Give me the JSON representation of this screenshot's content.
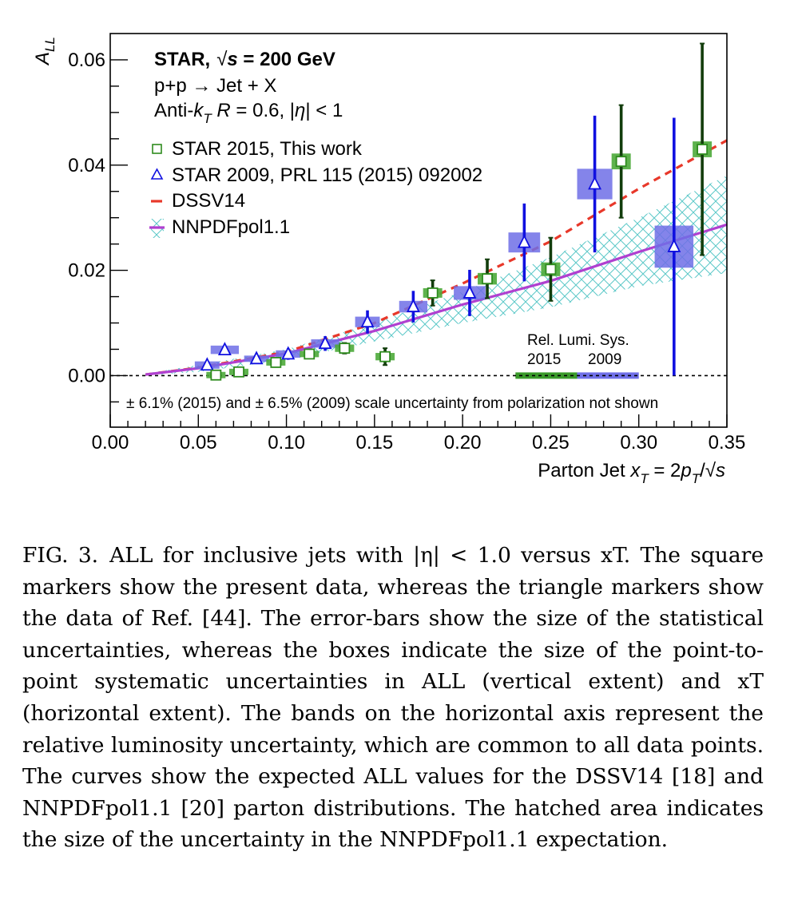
{
  "chart_data": {
    "type": "scatter",
    "ylabel": "A",
    "ylabel_sub": "LL",
    "xlabel_parts": [
      "Parton Jet ",
      "x",
      "T",
      " = 2",
      "p",
      "T",
      "/√",
      "s"
    ],
    "xlim": [
      0.0,
      0.35
    ],
    "ylim": [
      -0.0098,
      0.065
    ],
    "x_ticks": [
      "0.00",
      "0.05",
      "0.10",
      "0.15",
      "0.20",
      "0.25",
      "0.30",
      "0.35"
    ],
    "x_tick_values": [
      0.0,
      0.05,
      0.1,
      0.15,
      0.2,
      0.25,
      0.3,
      0.35
    ],
    "y_ticks": [
      "0.00",
      "0.02",
      "0.04",
      "0.06"
    ],
    "y_tick_values": [
      0.0,
      0.02,
      0.04,
      0.06
    ],
    "header": {
      "line1_a": "STAR,",
      "line1_b": "√",
      "line1_c": "s",
      "line1_d": " = 200 GeV",
      "line2": "p+p → Jet + X",
      "line3_a": "Anti-",
      "line3_b": "k",
      "line3_c": "T",
      "line3_d": " R",
      "line3_e": " = 0.6, |",
      "line3_f": "η",
      "line3_g": "| < 1"
    },
    "legend": [
      {
        "label": "STAR 2015, This work",
        "marker": "open-square",
        "color": "#2e8b1e"
      },
      {
        "label": "STAR 2009, PRL 115 (2015) 092002",
        "marker": "open-triangle",
        "color": "#1010e0"
      },
      {
        "label": "DSSV14",
        "marker": "dashed-line",
        "color": "#e8382a"
      },
      {
        "label": "NNPDFpol1.1",
        "marker": "hatched-line",
        "color": "#b040d0"
      }
    ],
    "lumi_label": "Rel. Lumi. Sys.",
    "lumi_years": [
      "2015",
      "2009"
    ],
    "lumi_bands": [
      {
        "year": "2015",
        "x0": 0.23,
        "x1": 0.265,
        "color": "#3a9a2a"
      },
      {
        "year": "2009",
        "x0": 0.265,
        "x1": 0.3,
        "color": "#7070e8"
      }
    ],
    "note": "± 6.1% (2015) and ± 6.5% (2009) scale uncertainty from polarization not shown",
    "series": [
      {
        "name": "STAR 2015, This work",
        "marker": "square",
        "points": [
          {
            "x": 0.06,
            "y": 0.0001,
            "stat": 0.0006,
            "sys": 0.0003
          },
          {
            "x": 0.073,
            "y": 0.0007,
            "stat": 0.0007,
            "sys": 0.0003
          },
          {
            "x": 0.094,
            "y": 0.0025,
            "stat": 0.0007,
            "sys": 0.0003
          },
          {
            "x": 0.113,
            "y": 0.0041,
            "stat": 0.0008,
            "sys": 0.0003
          },
          {
            "x": 0.133,
            "y": 0.0052,
            "stat": 0.001,
            "sys": 0.0004
          },
          {
            "x": 0.156,
            "y": 0.0036,
            "stat": 0.0016,
            "sys": 0.0004
          },
          {
            "x": 0.183,
            "y": 0.0157,
            "stat": 0.0024,
            "sys": 0.0006
          },
          {
            "x": 0.214,
            "y": 0.0184,
            "stat": 0.0037,
            "sys": 0.0008
          },
          {
            "x": 0.25,
            "y": 0.0202,
            "stat": 0.006,
            "sys": 0.001
          },
          {
            "x": 0.29,
            "y": 0.0407,
            "stat": 0.0107,
            "sys": 0.0012
          },
          {
            "x": 0.336,
            "y": 0.043,
            "stat": 0.0201,
            "sys": 0.0012
          }
        ]
      },
      {
        "name": "STAR 2009, PRL 115 (2015) 092002",
        "marker": "triangle",
        "points": [
          {
            "x": 0.055,
            "y": 0.002,
            "stat": 0.0008,
            "sys": 0.0007,
            "xsys": 0.007
          },
          {
            "x": 0.065,
            "y": 0.0049,
            "stat": 0.001,
            "sys": 0.0008,
            "xsys": 0.008
          },
          {
            "x": 0.083,
            "y": 0.0032,
            "stat": 0.001,
            "sys": 0.0006,
            "xsys": 0.007
          },
          {
            "x": 0.101,
            "y": 0.0041,
            "stat": 0.0011,
            "sys": 0.0007,
            "xsys": 0.007
          },
          {
            "x": 0.122,
            "y": 0.0061,
            "stat": 0.0014,
            "sys": 0.0008,
            "xsys": 0.008
          },
          {
            "x": 0.146,
            "y": 0.0102,
            "stat": 0.0022,
            "sys": 0.001,
            "xsys": 0.007
          },
          {
            "x": 0.172,
            "y": 0.0131,
            "stat": 0.003,
            "sys": 0.0011,
            "xsys": 0.008
          },
          {
            "x": 0.204,
            "y": 0.0157,
            "stat": 0.0044,
            "sys": 0.0013,
            "xsys": 0.009
          },
          {
            "x": 0.235,
            "y": 0.0253,
            "stat": 0.0074,
            "sys": 0.0019,
            "xsys": 0.009
          },
          {
            "x": 0.275,
            "y": 0.0364,
            "stat": 0.013,
            "sys": 0.0029,
            "xsys": 0.01
          },
          {
            "x": 0.32,
            "y": 0.0245,
            "stat": 0.0245,
            "sys": 0.004,
            "xsys": 0.011
          }
        ]
      },
      {
        "name": "DSSV14",
        "type": "line",
        "style": "dashed",
        "points": [
          {
            "x": 0.02,
            "y": 0.0002
          },
          {
            "x": 0.05,
            "y": 0.0015
          },
          {
            "x": 0.1,
            "y": 0.0045
          },
          {
            "x": 0.15,
            "y": 0.01
          },
          {
            "x": 0.2,
            "y": 0.0175
          },
          {
            "x": 0.25,
            "y": 0.0255
          },
          {
            "x": 0.3,
            "y": 0.0355
          },
          {
            "x": 0.35,
            "y": 0.0447
          }
        ]
      },
      {
        "name": "NNPDFpol1.1",
        "type": "line",
        "style": "solid",
        "points": [
          {
            "x": 0.02,
            "y": 0.0002
          },
          {
            "x": 0.05,
            "y": 0.0014
          },
          {
            "x": 0.1,
            "y": 0.0042
          },
          {
            "x": 0.15,
            "y": 0.0085
          },
          {
            "x": 0.2,
            "y": 0.0135
          },
          {
            "x": 0.25,
            "y": 0.018
          },
          {
            "x": 0.3,
            "y": 0.0235
          },
          {
            "x": 0.35,
            "y": 0.0287
          }
        ],
        "band": {
          "upper": [
            0.0004,
            0.002,
            0.005,
            0.01,
            0.016,
            0.0225,
            0.03,
            0.038
          ],
          "lower": [
            0.0,
            0.0007,
            0.003,
            0.0065,
            0.01,
            0.013,
            0.017,
            0.0195
          ]
        }
      }
    ]
  },
  "caption": {
    "label": "FIG. 3.",
    "text": "ALL for inclusive jets with |η| < 1.0 versus xT. The square markers show the present data, whereas the triangle markers show the data of Ref. [44]. The error-bars show the size of the statistical uncertainties, whereas the boxes indicate the size of the point-to-point systematic uncertainties in ALL (vertical extent) and xT (horizontal extent). The bands on the horizontal axis represent the relative luminosity uncertainty, which are common to all data points. The curves show the expected ALL values for the DSSV14 [18] and NNPDFpol1.1 [20] parton distributions. The hatched area indicates the size of the uncertainty in the NNPDFpol1.1 expectation."
  }
}
